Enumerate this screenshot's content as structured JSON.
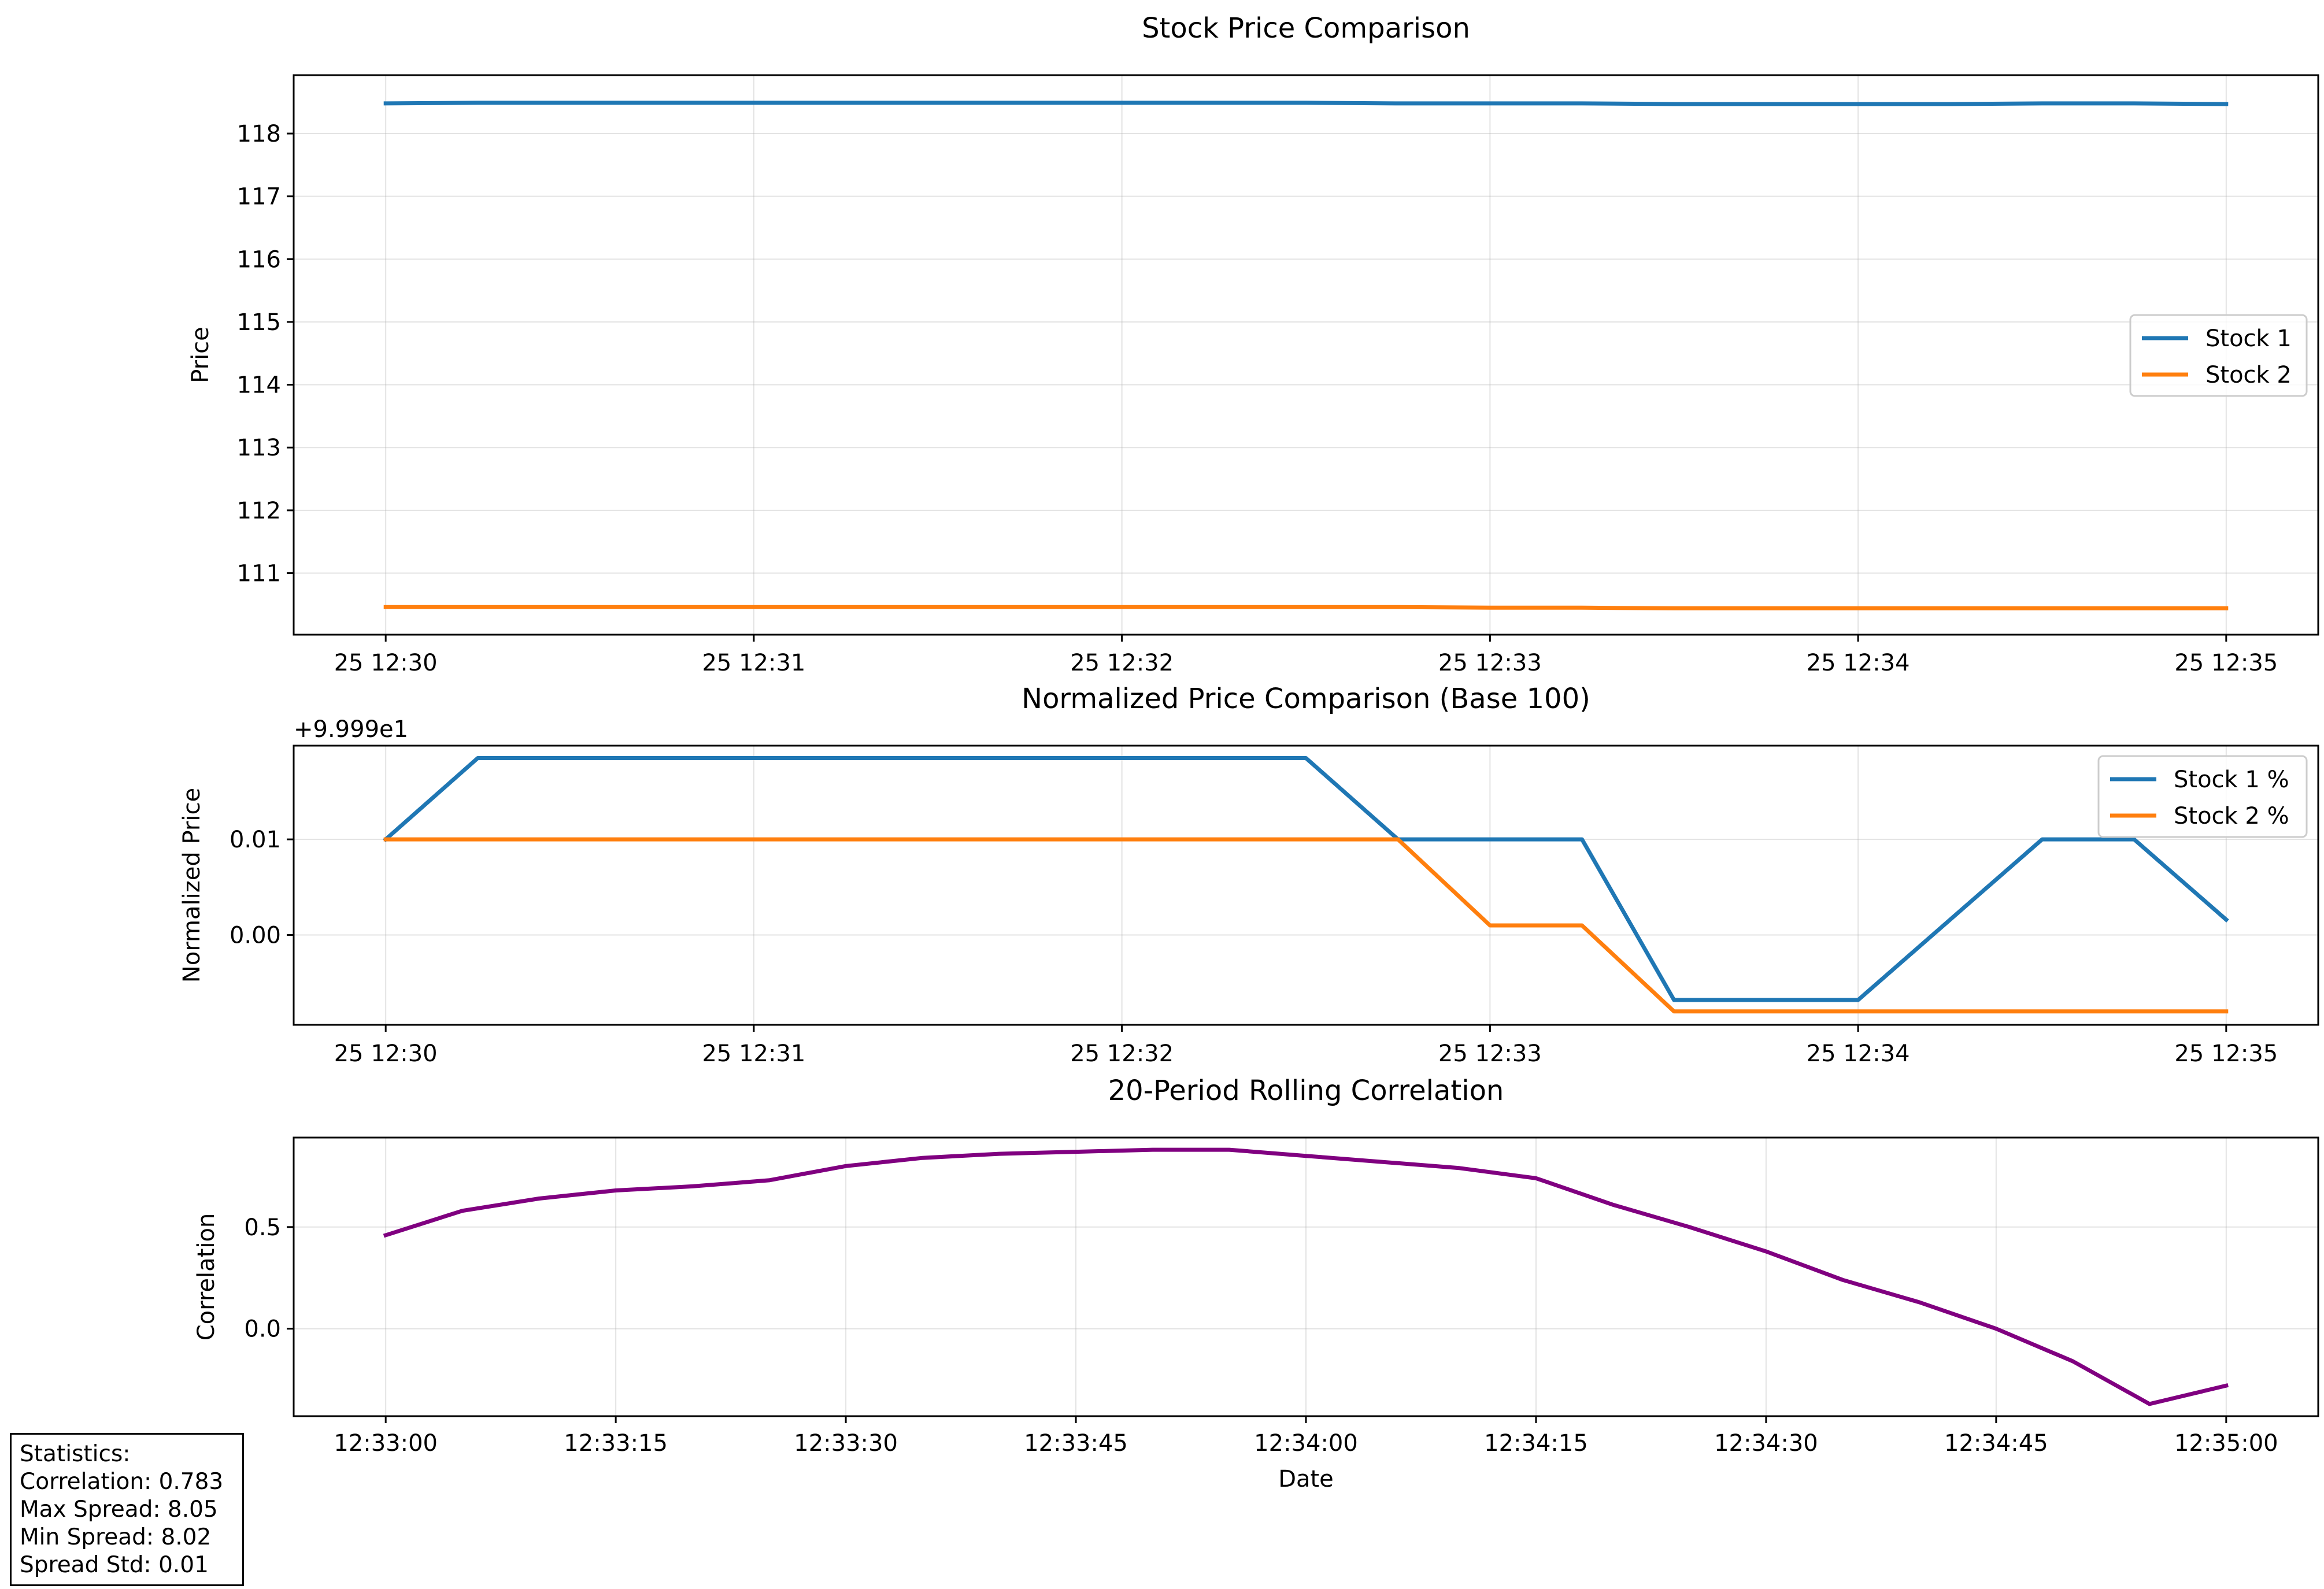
{
  "chart_data": [
    {
      "type": "line",
      "title": "Stock Price Comparison",
      "xlabel": "",
      "ylabel": "Price",
      "x_tick_labels": [
        "25 12:30",
        "25 12:31",
        "25 12:32",
        "25 12:33",
        "25 12:34",
        "25 12:35"
      ],
      "y_tick_labels": [
        "111",
        "112",
        "113",
        "114",
        "115",
        "116",
        "117",
        "118"
      ],
      "y_ticks": [
        111,
        112,
        113,
        114,
        115,
        116,
        117,
        118
      ],
      "xlim": [
        -0.25,
        5.25
      ],
      "ylim": [
        110.02,
        118.93
      ],
      "grid": true,
      "legend_position": "center-right",
      "x": [
        0,
        0.25,
        0.5,
        0.75,
        1,
        1.25,
        1.5,
        1.75,
        2,
        2.25,
        2.5,
        2.75,
        3,
        3.25,
        3.5,
        3.75,
        4,
        4.25,
        4.5,
        4.75,
        5
      ],
      "series": [
        {
          "name": "Stock 1",
          "color": "#1f77b4",
          "values": [
            118.48,
            118.49,
            118.49,
            118.49,
            118.49,
            118.49,
            118.49,
            118.49,
            118.49,
            118.49,
            118.49,
            118.48,
            118.48,
            118.48,
            118.47,
            118.47,
            118.47,
            118.47,
            118.48,
            118.48,
            118.47
          ]
        },
        {
          "name": "Stock 2",
          "color": "#ff7f0e",
          "values": [
            110.46,
            110.46,
            110.46,
            110.46,
            110.46,
            110.46,
            110.46,
            110.46,
            110.46,
            110.46,
            110.46,
            110.46,
            110.45,
            110.45,
            110.44,
            110.44,
            110.44,
            110.44,
            110.44,
            110.44,
            110.44
          ]
        }
      ]
    },
    {
      "type": "line",
      "title": "Normalized Price Comparison (Base 100)",
      "xlabel": "",
      "ylabel": "Normalized Price",
      "offset_text": "+9.999e1",
      "x_tick_labels": [
        "25 12:30",
        "25 12:31",
        "25 12:32",
        "25 12:33",
        "25 12:34",
        "25 12:35"
      ],
      "y_tick_labels": [
        "0.00",
        "0.01"
      ],
      "y_ticks": [
        0.0,
        0.01
      ],
      "xlim": [
        -0.25,
        5.25
      ],
      "ylim": [
        -0.0094,
        0.0198
      ],
      "grid": true,
      "legend_position": "top-right",
      "x": [
        0,
        0.25,
        0.5,
        0.75,
        1,
        1.25,
        1.5,
        1.75,
        2,
        2.25,
        2.5,
        2.75,
        3,
        3.25,
        3.5,
        3.75,
        4,
        4.25,
        4.5,
        4.75,
        5
      ],
      "series": [
        {
          "name": "Stock 1 %",
          "color": "#1f77b4",
          "values": [
            0.01,
            0.0185,
            0.0185,
            0.0185,
            0.0185,
            0.0185,
            0.0185,
            0.0185,
            0.0185,
            0.0185,
            0.0185,
            0.01,
            0.01,
            0.01,
            -0.0068,
            -0.0068,
            -0.0068,
            0.0016,
            0.01,
            0.01,
            0.0016
          ]
        },
        {
          "name": "Stock 2 %",
          "color": "#ff7f0e",
          "values": [
            0.01,
            0.01,
            0.01,
            0.01,
            0.01,
            0.01,
            0.01,
            0.01,
            0.01,
            0.01,
            0.01,
            0.01,
            0.001,
            0.001,
            -0.008,
            -0.008,
            -0.008,
            -0.008,
            -0.008,
            -0.008,
            -0.008
          ]
        }
      ]
    },
    {
      "type": "line",
      "title": "20-Period Rolling Correlation",
      "xlabel": "Date",
      "ylabel": "Correlation",
      "x_tick_labels": [
        "12:33:00",
        "12:33:15",
        "12:33:30",
        "12:33:45",
        "12:34:00",
        "12:34:15",
        "12:34:30",
        "12:34:45",
        "12:35:00"
      ],
      "y_tick_labels": [
        "0.0",
        "0.5"
      ],
      "y_ticks": [
        0.0,
        0.5
      ],
      "xlim": [
        -6,
        126
      ],
      "ylim": [
        -0.43,
        0.94
      ],
      "grid": true,
      "x": [
        0,
        5,
        10,
        15,
        20,
        25,
        30,
        35,
        40,
        45,
        50,
        55,
        60,
        65,
        70,
        75,
        80,
        85,
        90,
        95,
        100,
        105,
        110,
        115,
        120
      ],
      "series": [
        {
          "name": "",
          "color": "#800080",
          "values": [
            0.46,
            0.58,
            0.64,
            0.68,
            0.7,
            0.73,
            0.8,
            0.84,
            0.86,
            0.87,
            0.88,
            0.88,
            0.85,
            0.82,
            0.79,
            0.74,
            0.61,
            0.5,
            0.38,
            0.24,
            0.13,
            0.0,
            -0.16,
            -0.37,
            -0.28
          ]
        }
      ]
    }
  ],
  "stats": {
    "title": "Statistics:",
    "correlation": "Correlation: 0.783",
    "max_spread": "Max Spread: 8.05",
    "min_spread": "Min Spread: 8.02",
    "spread_std": "Spread Std: 0.01"
  }
}
